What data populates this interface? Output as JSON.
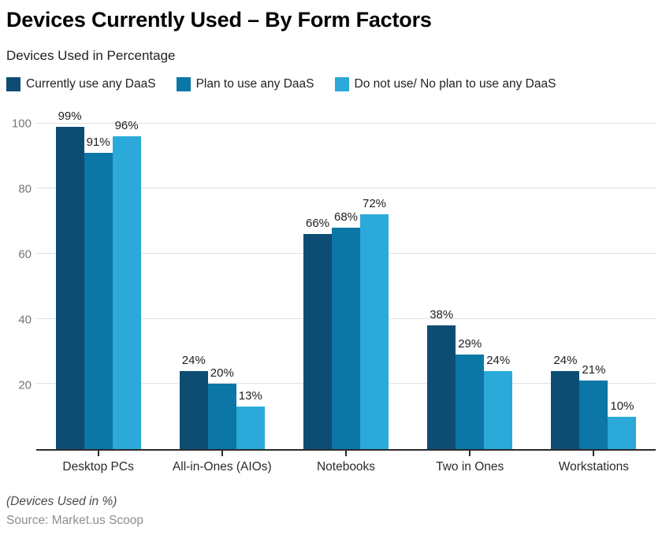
{
  "title": "Devices Currently Used – By Form Factors",
  "subtitle": "Devices Used in Percentage",
  "footnote": "(Devices Used in %)",
  "source": "Source: Market.us Scoop",
  "colors": {
    "series1": "#0d4d73",
    "series2": "#0c76a6",
    "series3": "#2ba9d9",
    "gridline": "#e0e0e0",
    "axis": "#2b2b2b",
    "y_label": "#757575"
  },
  "chart_data": {
    "type": "bar",
    "title": "Devices Currently Used – By Form Factors",
    "subtitle": "Devices Used in Percentage",
    "xlabel": "",
    "ylabel": "Devices Used in Percentage",
    "ylim": [
      0,
      105
    ],
    "yticks": [
      20,
      40,
      60,
      80,
      100
    ],
    "grid": true,
    "legend_position": "top-left",
    "value_label_suffix": "%",
    "categories": [
      "Desktop PCs",
      "All-in-Ones (AIOs)",
      "Notebooks",
      "Two in Ones",
      "Workstations"
    ],
    "series": [
      {
        "name": "Currently use any DaaS",
        "color": "#0d4d73",
        "values": [
          99,
          24,
          66,
          38,
          24
        ]
      },
      {
        "name": "Plan to use any DaaS",
        "color": "#0c76a6",
        "values": [
          91,
          20,
          68,
          29,
          21
        ]
      },
      {
        "name": "Do not use/ No plan to use any DaaS",
        "color": "#2ba9d9",
        "values": [
          96,
          13,
          72,
          24,
          10
        ]
      }
    ]
  }
}
